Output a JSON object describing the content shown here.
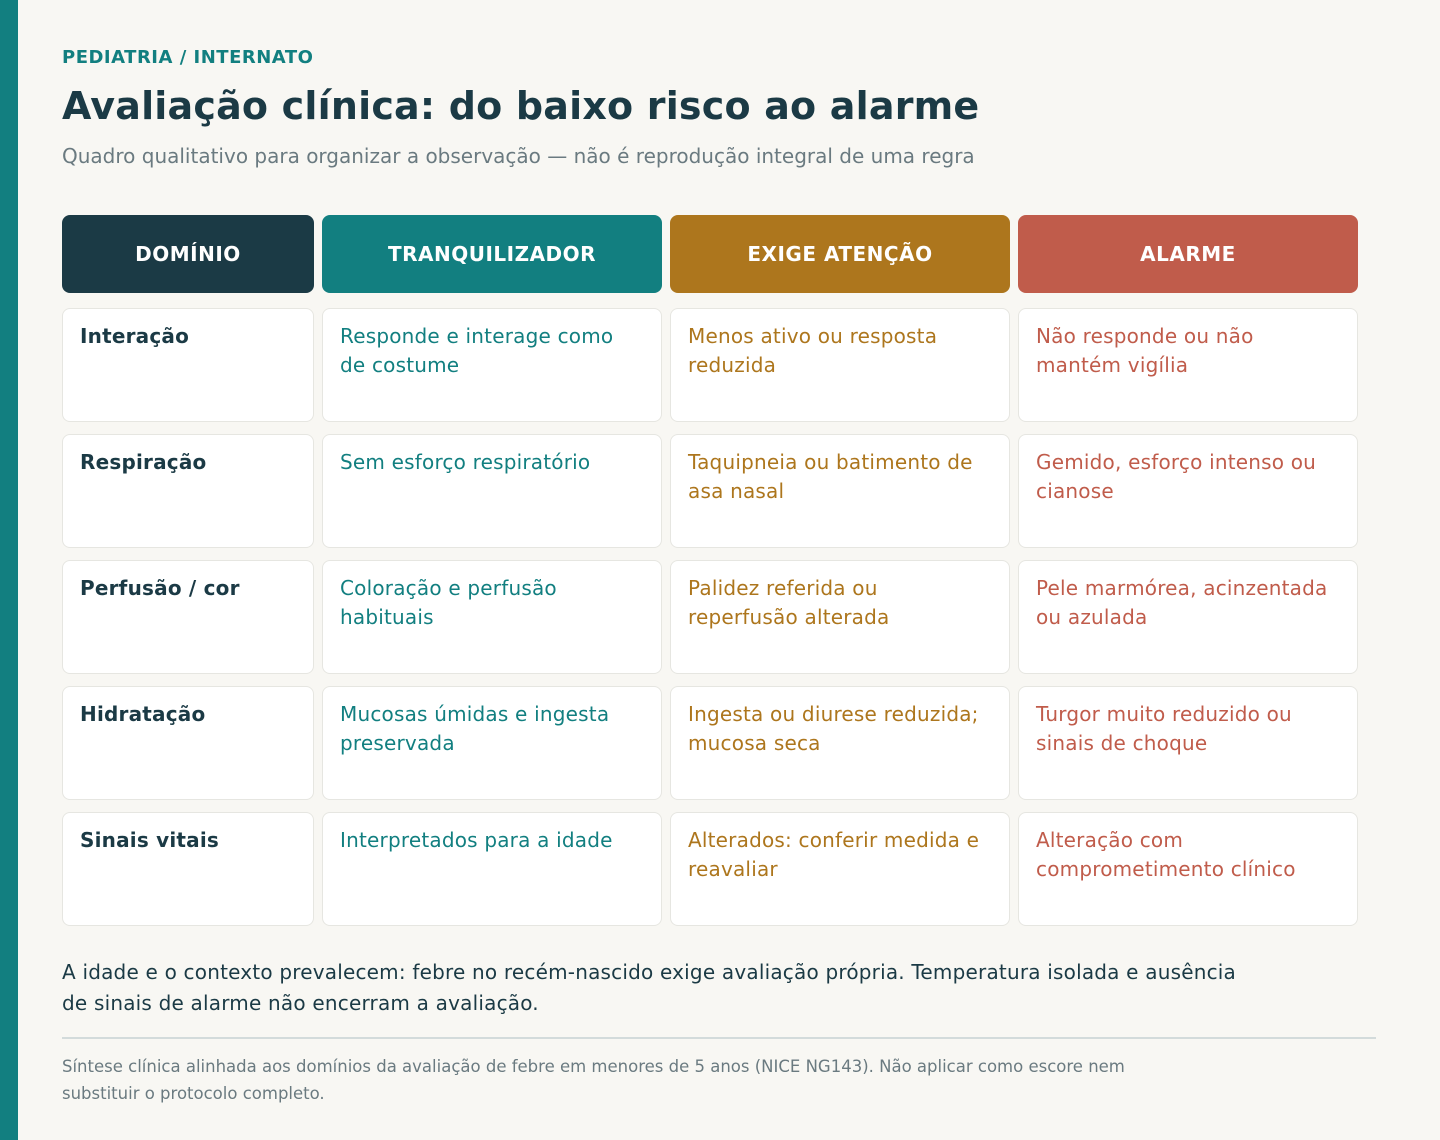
{
  "eyebrow": "PEDIATRIA / INTERNATO",
  "title": "Avaliação clínica: do baixo risco ao alarme",
  "subtitle": "Quadro qualitativo para organizar a observação — não é reprodução integral de uma regra",
  "table": {
    "headers": {
      "domain": "DOMÍNIO",
      "reassuring": "TRANQUILIZADOR",
      "attention": "EXIGE ATENÇÃO",
      "alarm": "ALARME"
    },
    "rows": [
      {
        "domain": "Interação",
        "reassuring": "Responde e interage como de costume",
        "attention": "Menos ativo ou resposta reduzida",
        "alarm": "Não responde ou não mantém vigília"
      },
      {
        "domain": "Respiração",
        "reassuring": "Sem esforço respiratório",
        "attention": "Taquipneia ou batimento de asa nasal",
        "alarm": "Gemido, esforço intenso ou cianose"
      },
      {
        "domain": "Perfusão / cor",
        "reassuring": "Coloração e perfusão habituais",
        "attention": "Palidez referida ou reperfusão alterada",
        "alarm": "Pele marmórea, acinzentada ou azulada"
      },
      {
        "domain": "Hidratação",
        "reassuring": "Mucosas úmidas e ingesta preservada",
        "attention": "Ingesta ou diurese reduzida; mucosa seca",
        "alarm": "Turgor muito reduzido ou sinais de choque"
      },
      {
        "domain": "Sinais vitais",
        "reassuring": "Interpretados para a idade",
        "attention": "Alterados: conferir medida e reavaliar",
        "alarm": "Alteração com comprometimento clínico"
      }
    ]
  },
  "note": "A idade e o contexto prevalecem: febre no recém-nascido exige avaliação própria. Temperatura isolada e ausência de sinais de alarme não encerram a avaliação.",
  "footnote": "Síntese clínica alinhada aos domínios da avaliação de febre em menores de 5 anos (NICE NG143). Não aplicar como escore nem substituir o protocolo completo.",
  "colors": {
    "accent": "#127f80",
    "dark": "#1b3a45",
    "attention": "#ad761d",
    "alarm": "#c05c4b",
    "background": "#f8f7f3"
  }
}
